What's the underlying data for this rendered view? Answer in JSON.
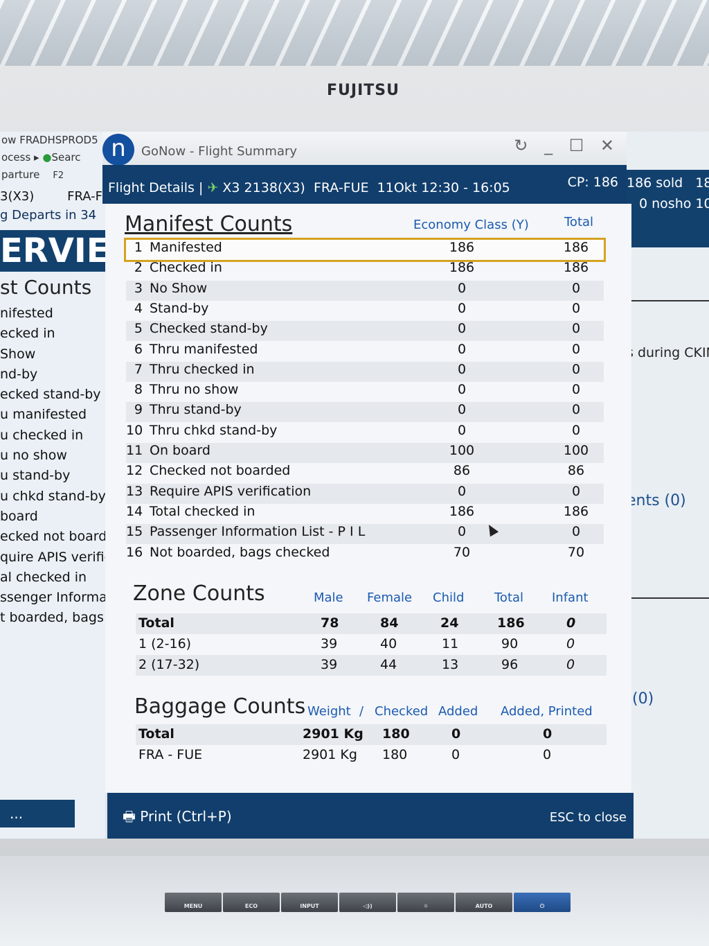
{
  "bezel": {
    "brand": "FUJITSU",
    "buttons": [
      "MENU",
      "ECO",
      "INPUT",
      "◁))",
      "☼",
      "AUTO",
      "⏻"
    ]
  },
  "background_left": {
    "lines": [
      "ow  FRADHSPROD5",
      "ocess ▸",
      "parture",
      "3(X3)",
      "g  Departs in 34"
    ],
    "search": "Searc",
    "f2": "F2",
    "route": "FRA-F",
    "banner": "ERVIE",
    "section": "st Counts",
    "items": [
      "nifested",
      "ecked in",
      "Show",
      "nd-by",
      "ecked stand-by",
      "u manifested",
      "u checked in",
      "u no show",
      "u stand-by",
      "u chkd stand-by",
      "board",
      "ecked not boarde",
      "quire APIS verific",
      "al checked in",
      "ssenger Informat",
      "t boarded, bags c"
    ],
    "more": "..."
  },
  "background_right": {
    "sold": "186 sold",
    "sold2": "18",
    "noshow": "0 nosho",
    "noshow2": "10",
    "ckin": "s during CKIN",
    "ents": "ents (0)",
    "zero": "(0)"
  },
  "window": {
    "logo": "n",
    "title": "GoNow - Flight Summary",
    "controls": "↻ _ ☐ ✕"
  },
  "header": {
    "details_label": "Flight Details |",
    "flight": "X3 2138(X3)",
    "route": "FRA-FUE",
    "time": "11Okt 12:30 - 16:05",
    "cp": "CP: 186"
  },
  "manifest": {
    "title": "Manifest Counts",
    "col_economy": "Economy Class (Y)",
    "col_total": "Total",
    "rows": [
      {
        "n": "1",
        "label": "Manifested",
        "econ": "186",
        "total": "186"
      },
      {
        "n": "2",
        "label": "Checked in",
        "econ": "186",
        "total": "186"
      },
      {
        "n": "3",
        "label": "No Show",
        "econ": "0",
        "total": "0"
      },
      {
        "n": "4",
        "label": "Stand-by",
        "econ": "0",
        "total": "0"
      },
      {
        "n": "5",
        "label": "Checked stand-by",
        "econ": "0",
        "total": "0"
      },
      {
        "n": "6",
        "label": "Thru manifested",
        "econ": "0",
        "total": "0"
      },
      {
        "n": "7",
        "label": "Thru checked in",
        "econ": "0",
        "total": "0"
      },
      {
        "n": "8",
        "label": "Thru no show",
        "econ": "0",
        "total": "0"
      },
      {
        "n": "9",
        "label": "Thru stand-by",
        "econ": "0",
        "total": "0"
      },
      {
        "n": "10",
        "label": "Thru chkd stand-by",
        "econ": "0",
        "total": "0"
      },
      {
        "n": "11",
        "label": "On board",
        "econ": "100",
        "total": "100"
      },
      {
        "n": "12",
        "label": "Checked not boarded",
        "econ": "86",
        "total": "86"
      },
      {
        "n": "13",
        "label": "Require APIS verification",
        "econ": "0",
        "total": "0"
      },
      {
        "n": "14",
        "label": "Total checked in",
        "econ": "186",
        "total": "186"
      },
      {
        "n": "15",
        "label": "Passenger Information List - P I L",
        "econ": "0",
        "total": "0"
      },
      {
        "n": "16",
        "label": "Not boarded, bags checked",
        "econ": "70",
        "total": "70"
      }
    ]
  },
  "zones": {
    "title": "Zone Counts",
    "headers": [
      "Male",
      "Female",
      "Child",
      "Total",
      "Infant"
    ],
    "rows": [
      {
        "label": "Total",
        "male": "78",
        "female": "84",
        "child": "24",
        "total": "186",
        "infant": "0"
      },
      {
        "label": "1 (2-16)",
        "male": "39",
        "female": "40",
        "child": "11",
        "total": "90",
        "infant": "0"
      },
      {
        "label": "2 (17-32)",
        "male": "39",
        "female": "44",
        "child": "13",
        "total": "96",
        "infant": "0"
      }
    ]
  },
  "baggage": {
    "title": "Baggage Counts",
    "headers": [
      "Weight",
      "/",
      "Checked",
      "Added",
      "Added, Printed"
    ],
    "rows": [
      {
        "label": "Total",
        "weight": "2901 Kg",
        "checked": "180",
        "added": "0",
        "printed": "0"
      },
      {
        "label": "FRA - FUE",
        "weight": "2901 Kg",
        "checked": "180",
        "added": "0",
        "printed": "0"
      }
    ]
  },
  "footer": {
    "print": "Print (Ctrl+P)",
    "esc": "ESC to close"
  }
}
